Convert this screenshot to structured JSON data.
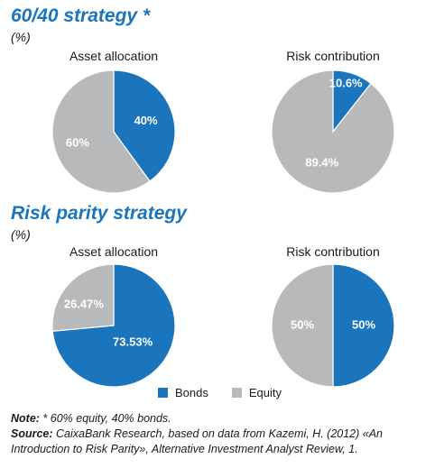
{
  "colors": {
    "bonds": "#1a75bc",
    "equity": "#b7b9ba",
    "title": "#1a75bc"
  },
  "sections": [
    {
      "title": "60/40 strategy *",
      "unit": "(%)"
    },
    {
      "title": "Risk parity strategy",
      "unit": "(%)"
    }
  ],
  "legend": [
    {
      "label": "Bonds",
      "color": "#1a75bc"
    },
    {
      "label": "Equity",
      "color": "#b7b9ba"
    }
  ],
  "chart_data": [
    {
      "type": "pie",
      "title": "Asset allocation",
      "slices": [
        {
          "label": "Bonds",
          "value": 40,
          "text": "40%"
        },
        {
          "label": "Equity",
          "value": 60,
          "text": "60%"
        }
      ]
    },
    {
      "type": "pie",
      "title": "Risk contribution",
      "slices": [
        {
          "label": "Bonds",
          "value": 10.6,
          "text": "10.6%"
        },
        {
          "label": "Equity",
          "value": 89.4,
          "text": "89.4%"
        }
      ]
    },
    {
      "type": "pie",
      "title": "Asset allocation",
      "slices": [
        {
          "label": "Bonds",
          "value": 73.53,
          "text": "73.53%"
        },
        {
          "label": "Equity",
          "value": 26.47,
          "text": "26.47%"
        }
      ]
    },
    {
      "type": "pie",
      "title": "Risk contribution",
      "slices": [
        {
          "label": "Bonds",
          "value": 50,
          "text": "50%"
        },
        {
          "label": "Equity",
          "value": 50,
          "text": "50%"
        }
      ]
    }
  ],
  "notes": {
    "note_label": "Note:",
    "note_text": " * 60% equity, 40% bonds.",
    "source_label": "Source:",
    "source_text": " CaixaBank Research, based on data from Kazemi, H. (2012) «An Introduction to Risk Parity», Alternative Investment Analyst Review, 1."
  }
}
